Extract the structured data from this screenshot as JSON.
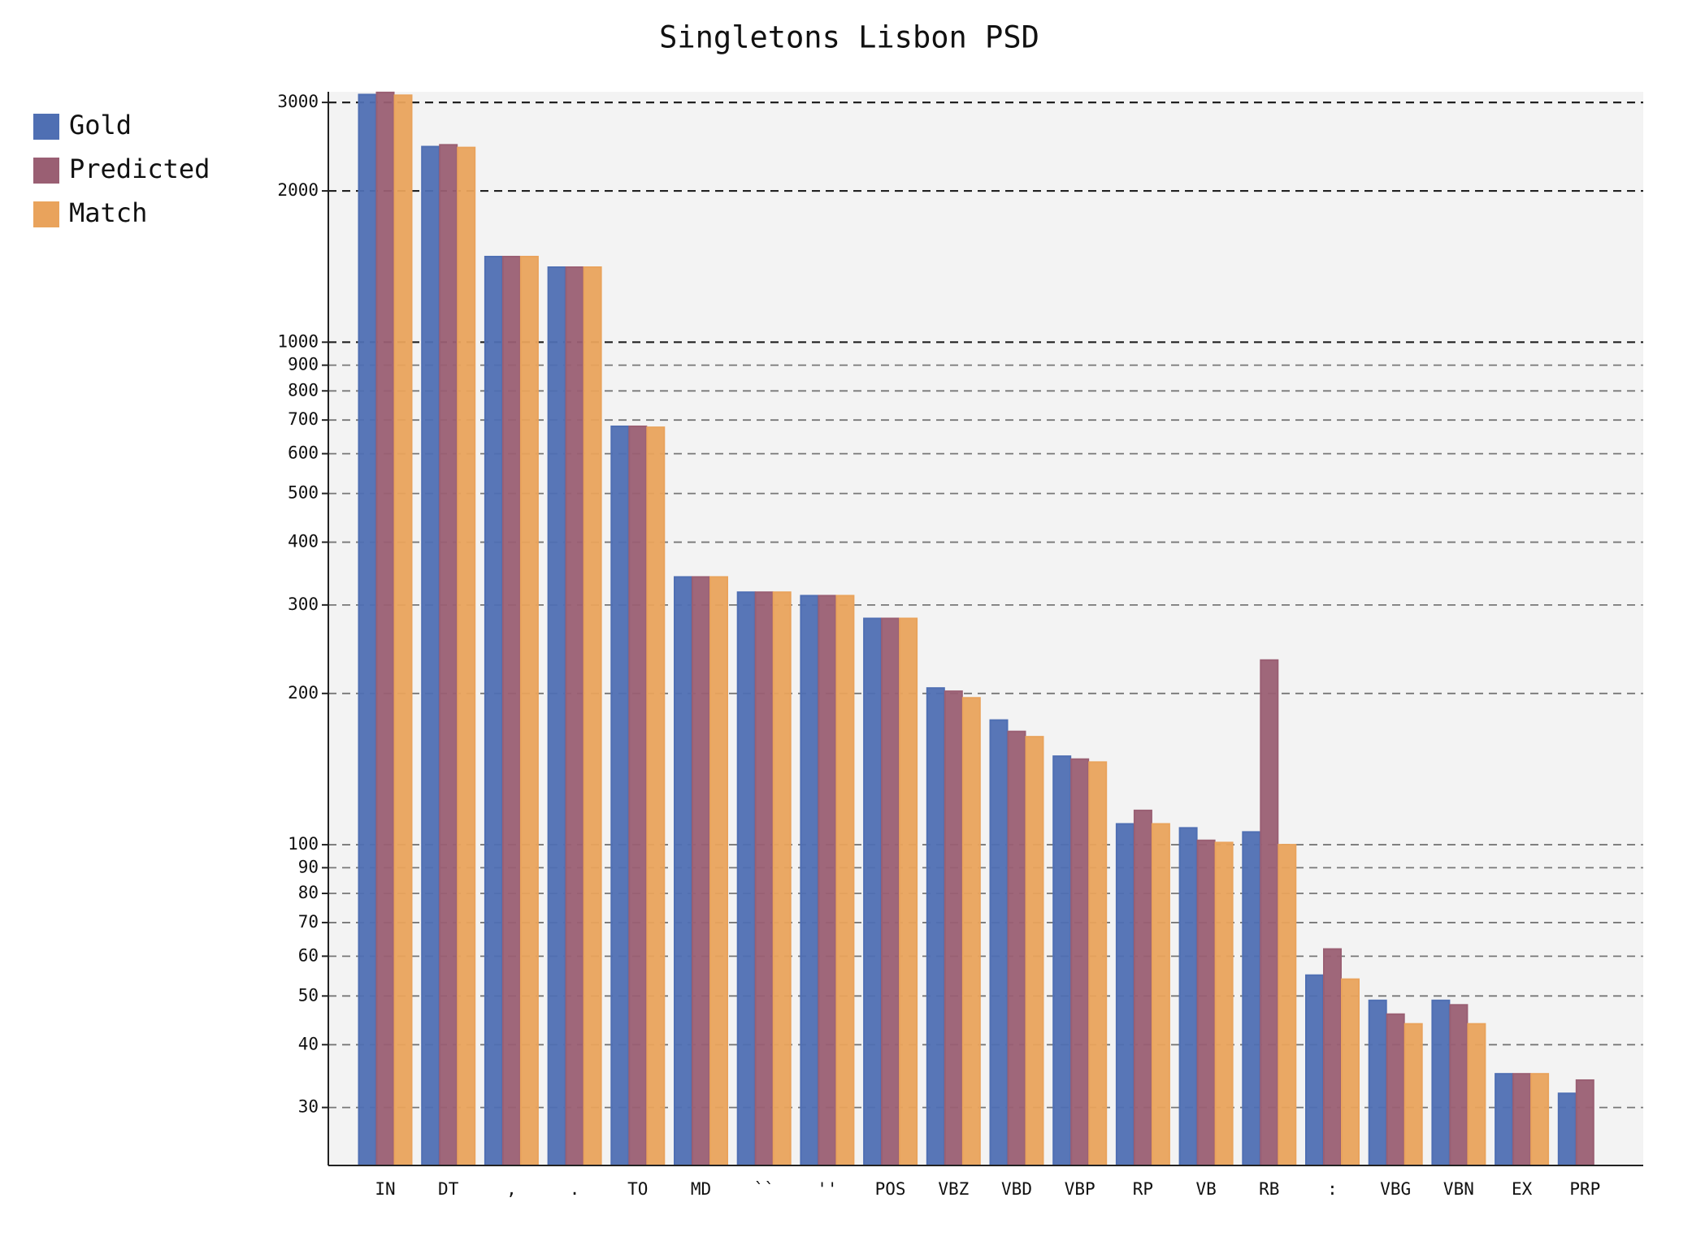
{
  "chart_data": {
    "type": "bar",
    "title": "Singletons Lisbon PSD",
    "categories": [
      "IN",
      "DT",
      ",",
      ".",
      "TO",
      "MD",
      "``",
      "''",
      "POS",
      "VBZ",
      "VBD",
      "VBP",
      "RP",
      "VB",
      "RB",
      ":",
      "VBG",
      "VBN",
      "EX",
      "PRP"
    ],
    "series": [
      {
        "name": "Gold",
        "color": "#4f6fb3",
        "values": [
          3110,
          2450,
          1480,
          1410,
          680,
          341,
          318,
          313,
          282,
          205,
          177,
          150,
          110,
          108,
          106,
          55,
          49,
          49,
          35,
          32
        ]
      },
      {
        "name": "Predicted",
        "color": "#9a5f73",
        "values": [
          3140,
          2470,
          1480,
          1410,
          680,
          341,
          318,
          313,
          282,
          202,
          168,
          148,
          117,
          102,
          233,
          62,
          46,
          48,
          35,
          34
        ]
      },
      {
        "name": "Match",
        "color": "#e9a35c",
        "values": [
          3100,
          2440,
          1480,
          1410,
          677,
          341,
          318,
          313,
          282,
          196,
          164,
          146,
          110,
          101,
          100,
          54,
          44,
          44,
          35,
          null
        ]
      }
    ],
    "log_scale": true,
    "ylim": [
      23,
      3150
    ],
    "yticks": [
      30,
      40,
      50,
      60,
      70,
      80,
      90,
      100,
      200,
      300,
      400,
      500,
      600,
      700,
      800,
      900,
      1000,
      2000,
      3000
    ],
    "grid": true,
    "legend": "left"
  }
}
